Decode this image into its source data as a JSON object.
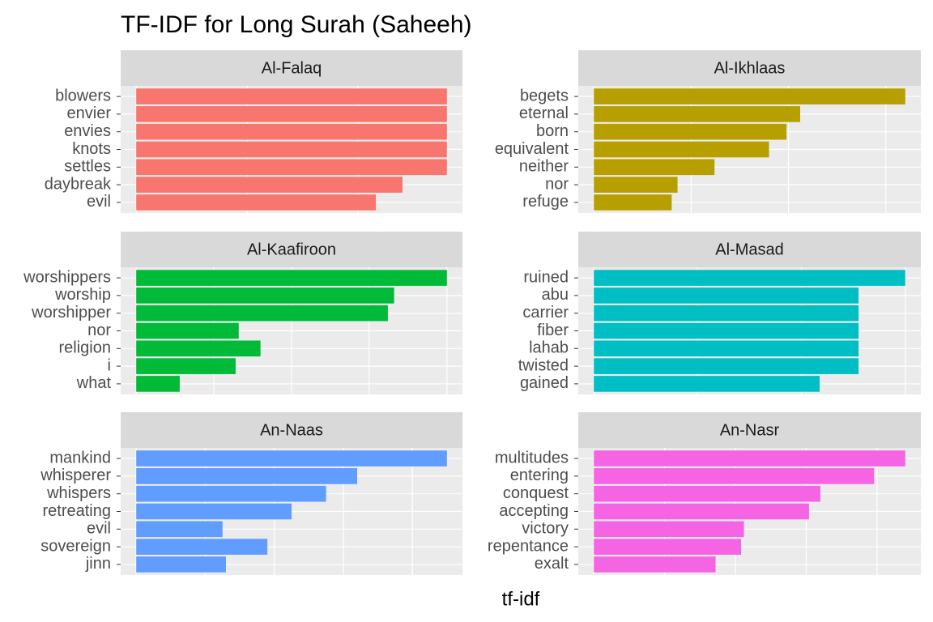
{
  "title": "TF-IDF for Long Surah (Saheeh)",
  "x_label": "tf-idf",
  "chart_data": [
    {
      "type": "bar",
      "orientation": "horizontal",
      "title": "Al-Falaq",
      "categories": [
        "blowers",
        "envier",
        "envies",
        "knots",
        "settles",
        "daybreak",
        "evil"
      ],
      "values": [
        0.14,
        0.14,
        0.14,
        0.14,
        0.14,
        0.12,
        0.108
      ],
      "color": "#F8766D",
      "xlim": [
        -0.007,
        0.147
      ],
      "xticks": [
        0,
        0.05,
        0.1
      ],
      "grid": true
    },
    {
      "type": "bar",
      "orientation": "horizontal",
      "title": "Al-Ikhlaas",
      "categories": [
        "begets",
        "eternal",
        "born",
        "equivalent",
        "neither",
        "nor",
        "refuge"
      ],
      "values": [
        0.16,
        0.106,
        0.099,
        0.09,
        0.062,
        0.043,
        0.04
      ],
      "color": "#B79F00",
      "xlim": [
        -0.008,
        0.168
      ],
      "xticks": [
        0,
        0.05,
        0.1,
        0.15
      ],
      "grid": true
    },
    {
      "type": "bar",
      "orientation": "horizontal",
      "title": "Al-Kaafiroon",
      "categories": [
        "worshippers",
        "worship",
        "worshipper",
        "nor",
        "religion",
        "i",
        "what"
      ],
      "values": [
        0.1,
        0.083,
        0.081,
        0.033,
        0.04,
        0.032,
        0.014
      ],
      "color": "#00BA38",
      "xlim": [
        -0.005,
        0.105
      ],
      "xticks": [
        0,
        0.025,
        0.05,
        0.075,
        0.1
      ],
      "grid": true
    },
    {
      "type": "bar",
      "orientation": "horizontal",
      "title": "Al-Masad",
      "categories": [
        "ruined",
        "abu",
        "carrier",
        "fiber",
        "lahab",
        "twisted",
        "gained"
      ],
      "values": [
        0.12,
        0.102,
        0.102,
        0.102,
        0.102,
        0.102,
        0.087
      ],
      "color": "#00BFC4",
      "xlim": [
        -0.006,
        0.126
      ],
      "xticks": [
        0,
        0.04,
        0.08,
        0.12
      ],
      "grid": true
    },
    {
      "type": "bar",
      "orientation": "horizontal",
      "title": "An-Naas",
      "categories": [
        "mankind",
        "whisperer",
        "whispers",
        "retreating",
        "evil",
        "sovereign",
        "jinn"
      ],
      "values": [
        0.09,
        0.064,
        0.055,
        0.045,
        0.025,
        0.038,
        0.026
      ],
      "color": "#619CFF",
      "xlim": [
        -0.0045,
        0.0945
      ],
      "xticks": [
        0,
        0.02,
        0.04,
        0.06,
        0.08
      ],
      "grid": true
    },
    {
      "type": "bar",
      "orientation": "horizontal",
      "title": "An-Nasr",
      "categories": [
        "multitudes",
        "entering",
        "conquest",
        "accepting",
        "victory",
        "repentance",
        "exalt"
      ],
      "values": [
        0.11,
        0.099,
        0.08,
        0.076,
        0.053,
        0.052,
        0.043
      ],
      "color": "#F564E3",
      "xlim": [
        -0.0055,
        0.1155
      ],
      "xticks": [
        0,
        0.025,
        0.05,
        0.075,
        0.1
      ],
      "grid": true
    }
  ]
}
